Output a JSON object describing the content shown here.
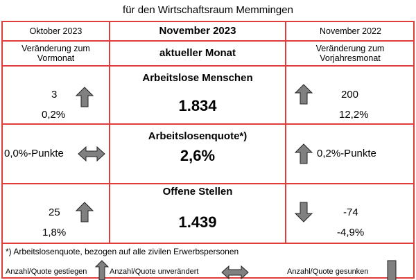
{
  "title": "für den Wirtschaftsraum Memmingen",
  "header": {
    "prev_month": "Oktober 2023",
    "current_month": "November 2023",
    "prev_year": "November 2022",
    "change_prev_month": "Veränderung zum Vormonat",
    "current_label": "aktueller Monat",
    "change_prev_year": "Veränderung zum Vorjahresmonat"
  },
  "rows": [
    {
      "label": "Arbeitslose Menschen",
      "value": "1.834",
      "vm_abs": "3",
      "vm_pct": "0,2%",
      "vm_trend": "up",
      "vj_abs": "200",
      "vj_pct": "12,2%",
      "vj_trend": "up"
    },
    {
      "label": "Arbeitslosenquote*)",
      "value": "2,6%",
      "vm_abs": "0,0%-Punkte",
      "vm_trend": "unchanged",
      "vj_abs": "0,2%-Punkte",
      "vj_trend": "up"
    },
    {
      "label": "Offene Stellen",
      "value": "1.439",
      "vm_abs": "25",
      "vm_pct": "1,8%",
      "vm_trend": "up",
      "vj_abs": "-74",
      "vj_pct": "-4,9%",
      "vj_trend": "down"
    }
  ],
  "footnote": "*) Arbeitslosenquote, bezogen auf alle zivilen Erwerbspersonen",
  "legend": {
    "up": "Anzahl/Quote gestiegen",
    "unchanged": "Anzahl/Quote unverändert",
    "down": "Anzahl/Quote gesunken"
  },
  "colors": {
    "border": "#e03c3c",
    "arrow_fill": "#808080"
  }
}
